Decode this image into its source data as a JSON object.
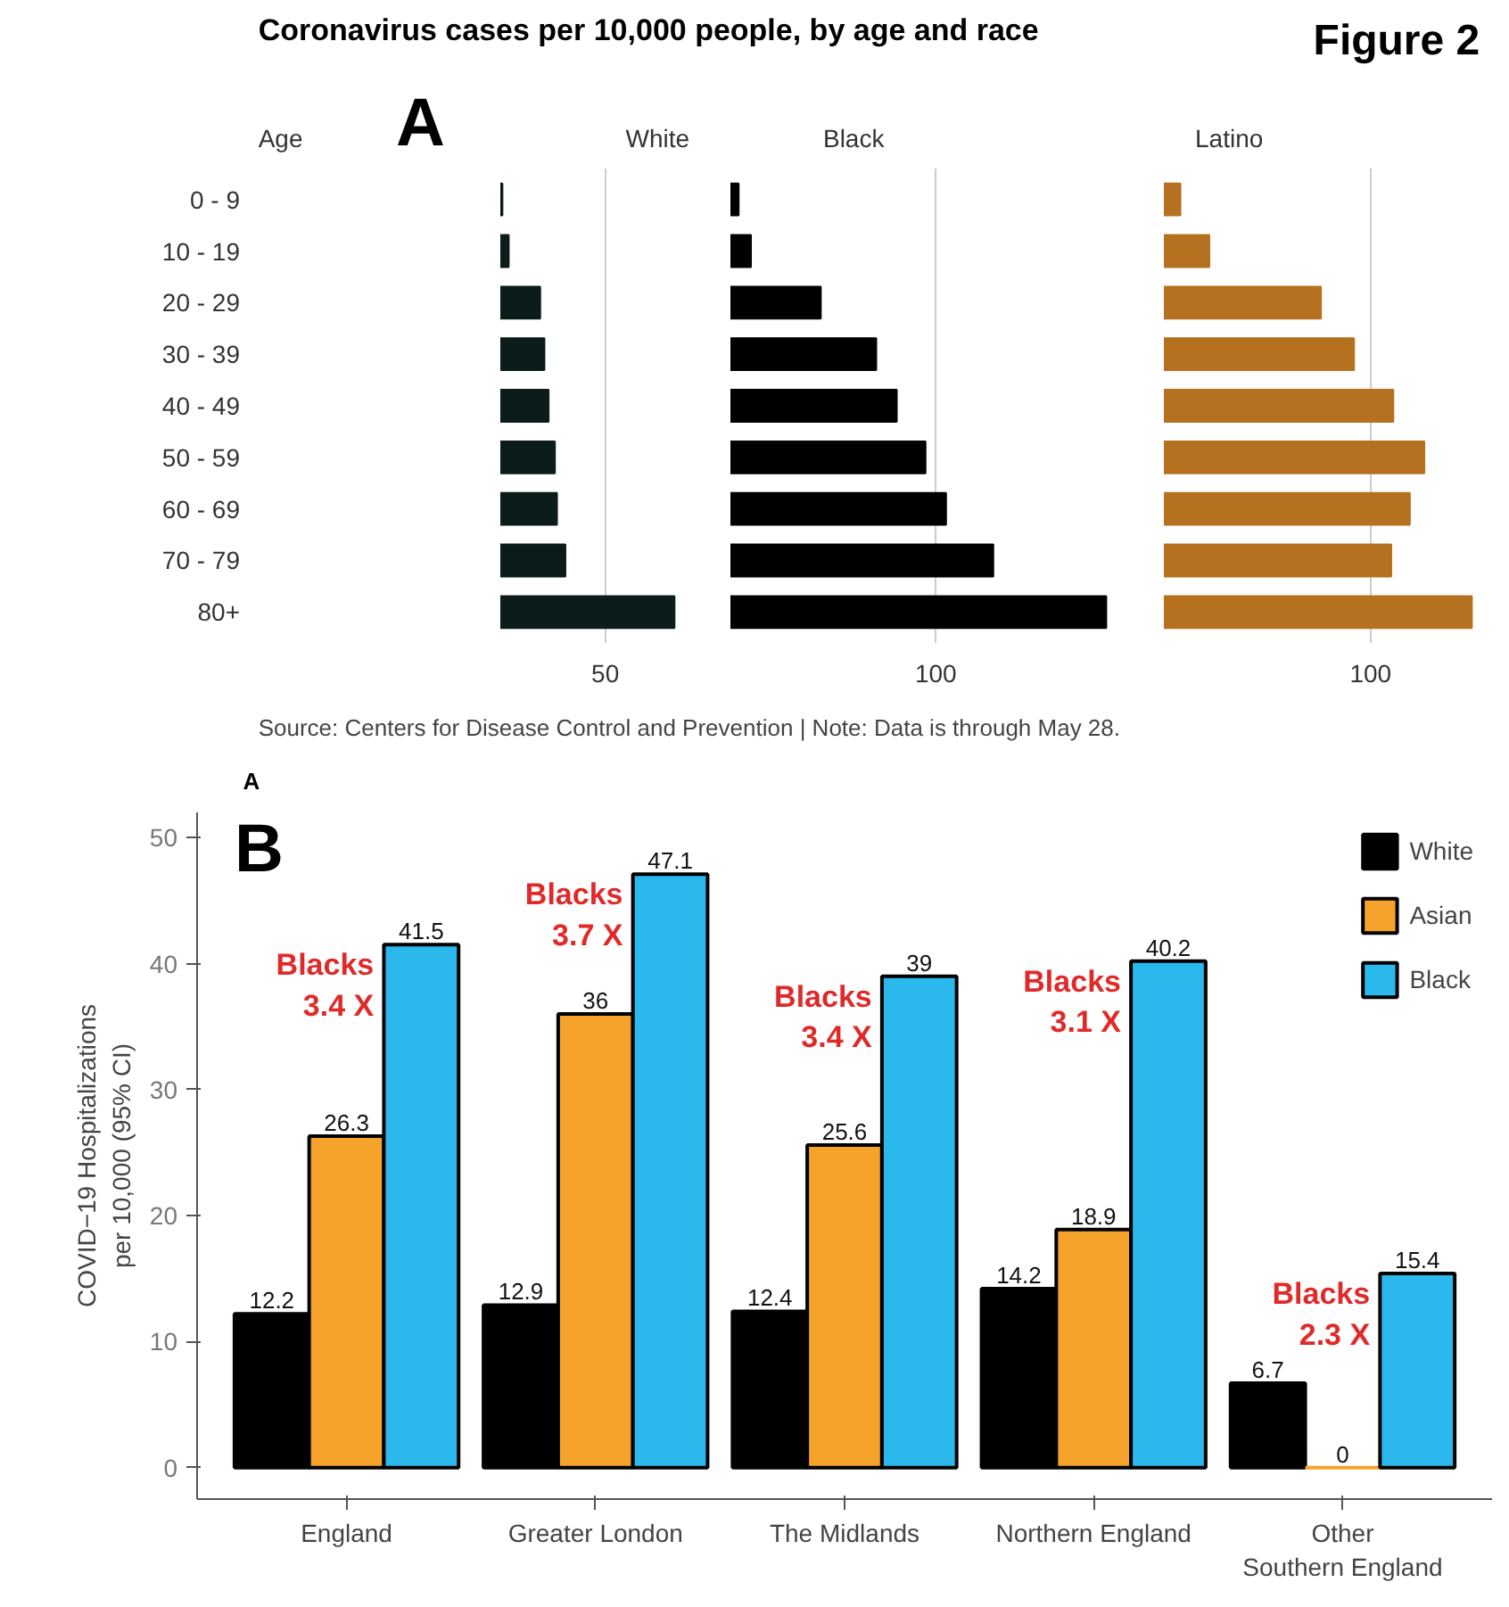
{
  "chart_data": [
    {
      "type": "bar",
      "orientation": "horizontal",
      "title": "Coronavirus cases per 10,000 people, by age and race",
      "subtitle": "White",
      "ylabel": "Age",
      "annotations": [
        "Figure 2",
        "A"
      ],
      "categories": [
        "0 - 9",
        "10 - 19",
        "20 - 29",
        "30 - 39",
        "40 - 49",
        "50 - 59",
        "60 - 69",
        "70 - 79",
        "80+"
      ],
      "values": [
        1,
        4,
        19,
        21,
        23,
        26,
        27,
        31,
        83
      ],
      "color": "#0b1c1a",
      "xlim": [
        0,
        85
      ],
      "xticks": [
        50
      ],
      "grid": "x"
    },
    {
      "type": "bar",
      "orientation": "horizontal",
      "subtitle": "Black",
      "values": [
        4,
        10,
        44,
        71,
        81,
        95,
        105,
        128,
        183
      ],
      "color": "#000000",
      "xlim": [
        0,
        185
      ],
      "xticks": [
        100
      ],
      "grid": "x",
      "tick_labels": "x"
    },
    {
      "type": "bar",
      "orientation": "horizontal",
      "subtitle": "Latino",
      "annotations": [
        "Source: Centers for Disease Control and Prevention | Note: Data is through May 28.",
        "A"
      ],
      "values": [
        8,
        22,
        76,
        92,
        111,
        126,
        119,
        110,
        149
      ],
      "color": "#b5711f",
      "xlim": [
        0,
        151
      ],
      "xticks": [
        100
      ],
      "grid": "x",
      "tick_labels": "x"
    },
    {
      "type": "bar",
      "ylabel": "COVID−19 Hospitalizations\nper 10,000 (95% CI)",
      "categories": [
        "England",
        "Greater London",
        "The Midlands",
        "Northern England",
        "Other\nSouthern England"
      ],
      "series": [
        {
          "name": "White",
          "color": "#000000",
          "values": [
            12.2,
            12.9,
            12.4,
            14.2,
            6.7
          ]
        },
        {
          "name": "Asian",
          "color": "#f5a32a",
          "values": [
            26.3,
            36,
            25.6,
            18.9,
            0
          ]
        },
        {
          "name": "Black",
          "color": "#2bb8ec",
          "values": [
            41.5,
            47.1,
            39,
            40.2,
            15.4
          ]
        }
      ],
      "ylim": [
        -2.5,
        52
      ],
      "yticks": [
        0,
        10,
        20,
        30,
        40,
        50
      ],
      "data_labels": true,
      "legend": "top right",
      "grid": false,
      "annotations": [
        "B",
        "Blacks\n3.4 X",
        "Blacks\n3.7 X",
        "Blacks\n3.4 X",
        "Blacks\n3.1 X",
        "Blacks\n2.3 X"
      ]
    }
  ]
}
